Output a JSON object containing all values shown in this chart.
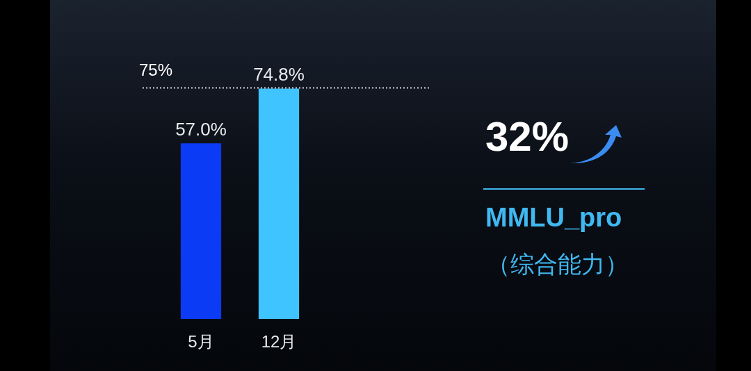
{
  "chart_data": {
    "type": "bar",
    "categories": [
      "5月",
      "12月"
    ],
    "values": [
      57.0,
      74.8
    ],
    "colors": [
      "#0b3bf5",
      "#40c4ff"
    ],
    "value_labels": [
      "57.0%",
      "74.8%"
    ],
    "ref_lines": [
      {
        "axis": "y",
        "value": 75,
        "label": "75%",
        "line_style": "dotted",
        "color": "#cfd6e0"
      }
    ],
    "annotations": [
      "32%",
      "MMLU_pro",
      "（综合能力）"
    ]
  }
}
